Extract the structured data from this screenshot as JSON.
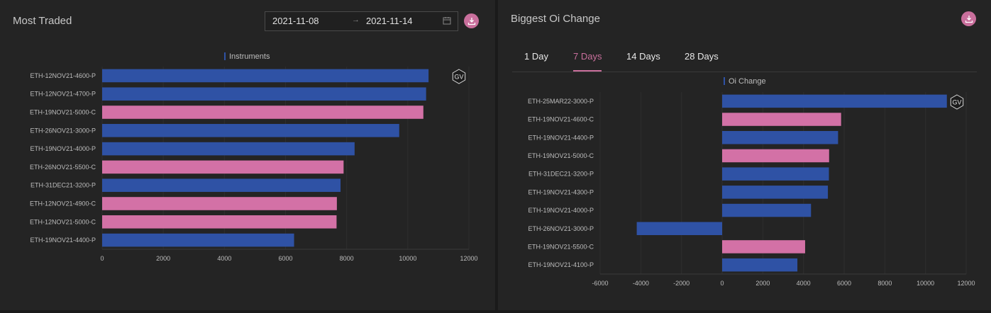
{
  "left_panel": {
    "title": "Most Traded",
    "date_from": "2021-11-08",
    "date_to": "2021-11-14",
    "date_arrow": "→"
  },
  "right_panel": {
    "title": "Biggest Oi Change",
    "tabs": [
      {
        "label": "1 Day"
      },
      {
        "label": "7 Days"
      },
      {
        "label": "14 Days"
      },
      {
        "label": "28 Days"
      }
    ],
    "active_tab": "7 Days"
  },
  "watermark": "GV",
  "colors": {
    "put": "#2f52a5",
    "call": "#d371a6",
    "accent": "#c96f9c"
  },
  "chart_data": [
    {
      "type": "bar",
      "orientation": "horizontal",
      "legend": "Instruments",
      "categories": [
        "ETH-12NOV21-4600-P",
        "ETH-12NOV21-4700-P",
        "ETH-19NOV21-5000-C",
        "ETH-26NOV21-3000-P",
        "ETH-19NOV21-4000-P",
        "ETH-26NOV21-5500-C",
        "ETH-31DEC21-3200-P",
        "ETH-12NOV21-4900-C",
        "ETH-12NOV21-5000-C",
        "ETH-19NOV21-4400-P"
      ],
      "values": [
        10680,
        10600,
        10510,
        9720,
        8260,
        7900,
        7800,
        7680,
        7670,
        6280
      ],
      "xlim": [
        0,
        12000
      ],
      "xticks": [
        0,
        2000,
        4000,
        6000,
        8000,
        10000,
        12000
      ]
    },
    {
      "type": "bar",
      "orientation": "horizontal",
      "legend": "Oi Change",
      "categories": [
        "ETH-25MAR22-3000-P",
        "ETH-19NOV21-4600-C",
        "ETH-19NOV21-4400-P",
        "ETH-19NOV21-5000-C",
        "ETH-31DEC21-3200-P",
        "ETH-19NOV21-4300-P",
        "ETH-19NOV21-4000-P",
        "ETH-26NOV21-3000-P",
        "ETH-19NOV21-5500-C",
        "ETH-19NOV21-4100-P"
      ],
      "values": [
        11050,
        5850,
        5700,
        5260,
        5250,
        5200,
        4370,
        -4200,
        4080,
        3700
      ],
      "xlim": [
        -6000,
        12000
      ],
      "xticks": [
        -6000,
        -4000,
        -2000,
        0,
        2000,
        4000,
        6000,
        8000,
        10000,
        12000
      ]
    }
  ]
}
